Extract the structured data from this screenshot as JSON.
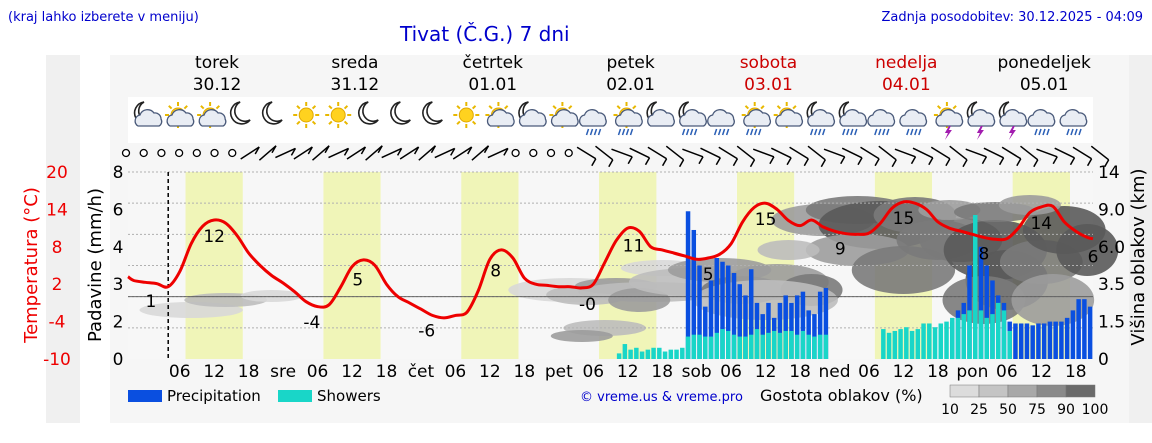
{
  "header": {
    "region_hint": "(kraj lahko izberete v meniju)",
    "title": "Tivat (Č.G.) 7 dni",
    "last_update": "Zadnja posodobitev: 30.12.2025 - 04:09"
  },
  "days": [
    {
      "name": "torek",
      "date": "30.12",
      "weekend": false
    },
    {
      "name": "sreda",
      "date": "31.12",
      "weekend": false
    },
    {
      "name": "četrtek",
      "date": "01.01",
      "weekend": false
    },
    {
      "name": "petek",
      "date": "02.01",
      "weekend": false
    },
    {
      "name": "sobota",
      "date": "03.01",
      "weekend": true
    },
    {
      "name": "nedelja",
      "date": "04.01",
      "weekend": true
    },
    {
      "name": "ponedeljek",
      "date": "05.01",
      "weekend": false
    }
  ],
  "weather_icons": [
    "moon-cloud-icon",
    "sun-cloud-icon",
    "sun-cloud-icon",
    "moon-icon",
    "moon-icon",
    "sun-icon",
    "sun-icon",
    "moon-icon",
    "moon-icon",
    "moon-icon",
    "sun-icon",
    "sun-cloud-icon",
    "moon-cloud-icon",
    "cloud-sun-icon",
    "cloud-rain-icon",
    "sun-rain-icon",
    "moon-cloud-icon",
    "moon-rain-icon",
    "rain-cloud-icon",
    "sun-rain-icon",
    "sun-cloud-icon",
    "moon-rain-icon",
    "moon-rain-icon",
    "rain-cloud-icon",
    "rain-cloud-icon",
    "sun-thunder-icon",
    "moon-thunder-icon",
    "moon-thunder-icon",
    "cloud-rain-icon",
    "cloud-rain-icon"
  ],
  "colors": {
    "temperature": "#ee0000",
    "precipitation": "#0a4fe0",
    "showers": "#19d6c8",
    "daylight": "#f0f5b8",
    "title": "#0000cc",
    "weekend": "#cc0000"
  },
  "chart_data": {
    "type": "line",
    "title": "Tivat (Č.G.) 7 dni",
    "x_unit": "hours since 30.12 00:00",
    "x_range": [
      -3,
      165
    ],
    "x_ticks": [
      {
        "hour": 6,
        "label": "06"
      },
      {
        "hour": 12,
        "label": "12"
      },
      {
        "hour": 18,
        "label": "18"
      },
      {
        "hour": 24,
        "label": "sre"
      },
      {
        "hour": 30,
        "label": "06"
      },
      {
        "hour": 36,
        "label": "12"
      },
      {
        "hour": 42,
        "label": "18"
      },
      {
        "hour": 48,
        "label": "čet"
      },
      {
        "hour": 54,
        "label": "06"
      },
      {
        "hour": 60,
        "label": "12"
      },
      {
        "hour": 66,
        "label": "18"
      },
      {
        "hour": 72,
        "label": "pet"
      },
      {
        "hour": 78,
        "label": "06"
      },
      {
        "hour": 84,
        "label": "12"
      },
      {
        "hour": 90,
        "label": "18"
      },
      {
        "hour": 96,
        "label": "sob"
      },
      {
        "hour": 102,
        "label": "06"
      },
      {
        "hour": 108,
        "label": "12"
      },
      {
        "hour": 114,
        "label": "18"
      },
      {
        "hour": 120,
        "label": "ned"
      },
      {
        "hour": 126,
        "label": "06"
      },
      {
        "hour": 132,
        "label": "12"
      },
      {
        "hour": 138,
        "label": "18"
      },
      {
        "hour": 144,
        "label": "pon"
      },
      {
        "hour": 150,
        "label": "06"
      },
      {
        "hour": 156,
        "label": "12"
      },
      {
        "hour": 162,
        "label": "18"
      }
    ],
    "now_hour": 4,
    "daylight_hours": [
      7,
      17
    ],
    "temperature": {
      "label": "Temperatura (°C)",
      "ticks": [
        20,
        14,
        8,
        2,
        -4,
        -10
      ],
      "ylim": [
        -10,
        20
      ],
      "points": [
        [
          -3,
          3.2
        ],
        [
          -2,
          2.6
        ],
        [
          0,
          2.3
        ],
        [
          2,
          2.1
        ],
        [
          4,
          1.6
        ],
        [
          6,
          4
        ],
        [
          8,
          8.5
        ],
        [
          10,
          11.3
        ],
        [
          12,
          12.3
        ],
        [
          14,
          11.8
        ],
        [
          16,
          9.8
        ],
        [
          18,
          7
        ],
        [
          20,
          5
        ],
        [
          22,
          3.4
        ],
        [
          24,
          2.2
        ],
        [
          26,
          0.8
        ],
        [
          28,
          -0.8
        ],
        [
          30,
          -1.6
        ],
        [
          32,
          -1.3
        ],
        [
          34,
          1.5
        ],
        [
          36,
          4.8
        ],
        [
          38,
          5.9
        ],
        [
          40,
          5
        ],
        [
          42,
          2
        ],
        [
          44,
          0
        ],
        [
          46,
          -1
        ],
        [
          48,
          -2
        ],
        [
          50,
          -3
        ],
        [
          52,
          -3.4
        ],
        [
          54,
          -3
        ],
        [
          56,
          -2.5
        ],
        [
          58,
          1
        ],
        [
          60,
          6
        ],
        [
          62,
          7.5
        ],
        [
          64,
          6.2
        ],
        [
          66,
          3
        ],
        [
          68,
          2
        ],
        [
          70,
          1.8
        ],
        [
          72,
          1.6
        ],
        [
          74,
          1.6
        ],
        [
          76,
          1.4
        ],
        [
          78,
          2
        ],
        [
          80,
          5.5
        ],
        [
          82,
          9
        ],
        [
          84,
          11
        ],
        [
          86,
          10.5
        ],
        [
          88,
          8
        ],
        [
          90,
          7.5
        ],
        [
          92,
          7
        ],
        [
          94,
          6.5
        ],
        [
          96,
          6
        ],
        [
          98,
          6.2
        ],
        [
          100,
          6.8
        ],
        [
          102,
          8.5
        ],
        [
          104,
          12
        ],
        [
          106,
          14.3
        ],
        [
          108,
          15
        ],
        [
          110,
          14
        ],
        [
          112,
          12.2
        ],
        [
          114,
          11.4
        ],
        [
          116,
          12.3
        ],
        [
          118,
          11.2
        ],
        [
          120,
          10.5
        ],
        [
          122,
          10.1
        ],
        [
          124,
          10
        ],
        [
          126,
          10.2
        ],
        [
          128,
          11.8
        ],
        [
          130,
          14.2
        ],
        [
          132,
          15.2
        ],
        [
          134,
          15
        ],
        [
          136,
          14
        ],
        [
          138,
          12
        ],
        [
          140,
          11
        ],
        [
          142,
          10.5
        ],
        [
          144,
          10
        ],
        [
          146,
          9.5
        ],
        [
          148,
          9.2
        ],
        [
          150,
          9.3
        ],
        [
          152,
          11
        ],
        [
          154,
          13.5
        ],
        [
          156,
          14.4
        ],
        [
          158,
          14.5
        ],
        [
          160,
          12
        ],
        [
          162,
          10.5
        ],
        [
          164,
          9.5
        ],
        [
          165,
          9.3
        ]
      ],
      "labels": [
        {
          "hour": 12,
          "value": "12"
        },
        {
          "hour": 1,
          "value": "1"
        },
        {
          "hour": 29,
          "value": "-4"
        },
        {
          "hour": 37,
          "value": "5"
        },
        {
          "hour": 49,
          "value": "-6"
        },
        {
          "hour": 61,
          "value": "8"
        },
        {
          "hour": 77,
          "value": "-0"
        },
        {
          "hour": 85,
          "value": "11"
        },
        {
          "hour": 98,
          "value": "5"
        },
        {
          "hour": 108,
          "value": "15"
        },
        {
          "hour": 121,
          "value": "9"
        },
        {
          "hour": 132,
          "value": "15"
        },
        {
          "hour": 146,
          "value": "8"
        },
        {
          "hour": 156,
          "value": "14"
        },
        {
          "hour": 165,
          "value": "6"
        }
      ]
    },
    "precipitation": {
      "label": "Padavine (mm/h)",
      "ticks": [
        8,
        6,
        4,
        3,
        2,
        0
      ],
      "note": "axis is non-linear: 0, 2, 3, 4, 6, 8 evenly spaced",
      "series": [
        {
          "name": "Precipitation",
          "hours": [
            94.5,
            95.5,
            96.5,
            97.5,
            98.5,
            99.5,
            100.5,
            101.5,
            102.5,
            103.5,
            104.5,
            105.5,
            106.5,
            107.5,
            108.5,
            109.5,
            110.5,
            111.5,
            112.5,
            113.5,
            114.5,
            115.5,
            116.5,
            117.5,
            118.5,
            140.5,
            141.5,
            142.5,
            143.5,
            144.5,
            145.5,
            146.5,
            147.5,
            148.5,
            149.5,
            150.5,
            151.5,
            152.5,
            153.5,
            154.5,
            155.5,
            156.5,
            157.5,
            158.5,
            159.5,
            160.5,
            161.5,
            162.5,
            163.5,
            164.5
          ],
          "values": [
            5.9,
            4.9,
            3.5,
            2.4,
            3.1,
            3.7,
            3.6,
            3.5,
            3.3,
            3,
            2.7,
            3.4,
            2.5,
            2.2,
            2.5,
            2.1,
            2.5,
            2.7,
            2.5,
            2.7,
            2.8,
            2.3,
            2.2,
            2.8,
            2.9,
            2,
            2.3,
            2.5,
            3.5,
            4.2,
            4,
            3.5,
            3.1,
            2.7,
            2.5,
            2,
            1.9,
            1.9,
            1.9,
            1.8,
            1.9,
            1.9,
            2,
            2,
            2,
            2.1,
            2.3,
            2.6,
            2.6,
            2.4
          ]
        },
        {
          "name": "Showers",
          "hours": [
            82.5,
            83.5,
            84.5,
            85.5,
            86.5,
            87.5,
            88.5,
            89.5,
            90.5,
            91.5,
            92.5,
            93.5,
            94.5,
            95.5,
            96.5,
            97.5,
            98.5,
            99.5,
            100.5,
            101.5,
            102.5,
            103.5,
            104.5,
            105.5,
            106.5,
            107.5,
            108.5,
            109.5,
            110.5,
            111.5,
            112.5,
            113.5,
            114.5,
            115.5,
            116.5,
            117.5,
            118.5,
            128.5,
            129.5,
            130.5,
            131.5,
            132.5,
            133.5,
            134.5,
            135.5,
            136.5,
            137.5,
            138.5,
            139.5,
            140.5,
            141.5,
            142.5,
            143.5,
            144.5,
            145.5,
            146.5,
            147.5,
            148.5,
            149.5,
            150.5
          ],
          "values": [
            0.3,
            0.8,
            0.5,
            0.6,
            0.4,
            0.5,
            0.6,
            0.6,
            0.4,
            0.5,
            0.5,
            0.6,
            1.2,
            1.3,
            1.3,
            1.2,
            1.2,
            1.4,
            1.6,
            1.5,
            1.3,
            1.2,
            1.2,
            1.3,
            1.6,
            1.3,
            1.4,
            1.5,
            1.4,
            1.5,
            1.5,
            1.3,
            1.5,
            1.3,
            1.2,
            1.3,
            1.3,
            1.6,
            1.4,
            1.5,
            1.6,
            1.7,
            1.5,
            1.6,
            1.9,
            1.9,
            1.7,
            1.9,
            2,
            2.1,
            2.1,
            2.2,
            2.3,
            5.7,
            2.3,
            2.1,
            2.2,
            2.5,
            2.3,
            1.5
          ]
        }
      ]
    },
    "cloud_height": {
      "label": "Višina oblakov (km)",
      "ticks": [
        "14",
        "9.0",
        "6.0",
        "3.5",
        "1.5",
        "0"
      ]
    },
    "cloud_density": {
      "label": "Gostota oblakov (%)",
      "scale": [
        10,
        25,
        50,
        75,
        90,
        100
      ]
    },
    "legend": [
      {
        "name": "Precipitation"
      },
      {
        "name": "Showers"
      }
    ],
    "copyright": "© vreme.us & vreme.pro"
  }
}
